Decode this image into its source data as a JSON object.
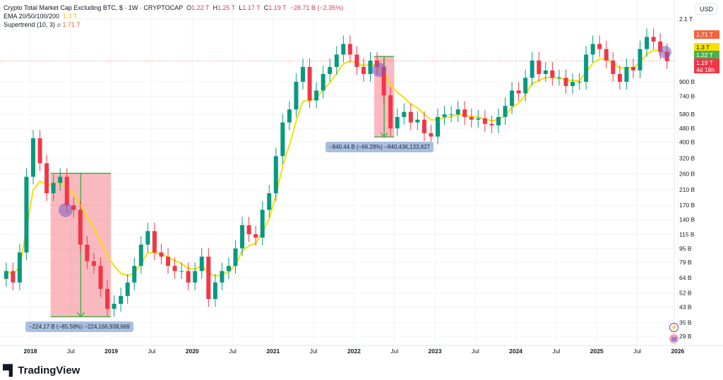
{
  "header": {
    "title": "Crypto Total Market Cap Excluding BTC, $ · 1W · CRYPTOCAP",
    "ohlc": {
      "o_label": "O",
      "o": "1.22 T",
      "h_label": "H",
      "h": "1.25 T",
      "l_label": "L",
      "l": "1.17 T",
      "c_label": "C",
      "c": "1.19 T",
      "change": "−28.71 B (−2.35%)"
    },
    "ema_label": "EMA 20/50/100/200",
    "ema_value": "1.3 T",
    "supertrend_label": "Supertrend (10, 3)",
    "supertrend_icon": "hidden-eye-icon",
    "supertrend_value": "1.71 T"
  },
  "currency": "USD",
  "price_labels": [
    {
      "text": "1.71 T",
      "color": "#f7633c"
    },
    {
      "text": "1.3 T",
      "color": "#f5e000"
    },
    {
      "text": "1.22 T",
      "color": "#4caf50"
    },
    {
      "text": "1.19 T",
      "color": "#f23645",
      "sub": "4d 18h"
    }
  ],
  "brand": "TradingView",
  "colors": {
    "up": "#089981",
    "down": "#f23645",
    "ema": "#f5e000",
    "supertrend_up": "#4caf50",
    "supertrend_down": "#f7633c",
    "measure_down": "#f23645",
    "measure_bg": "#a9bfe0"
  },
  "chart_data": {
    "type": "candlestick",
    "scale": "log",
    "unit": "B USD",
    "ylim": [
      26,
      2300
    ],
    "grid": true,
    "x_ticks": [
      {
        "date": "2018-01",
        "label": "2018",
        "bold": true
      },
      {
        "date": "2018-07",
        "label": "Jul"
      },
      {
        "date": "2019-01",
        "label": "2019",
        "bold": true
      },
      {
        "date": "2019-07",
        "label": "Jul"
      },
      {
        "date": "2020-01",
        "label": "2020",
        "bold": true
      },
      {
        "date": "2020-07",
        "label": "Jul"
      },
      {
        "date": "2021-01",
        "label": "2021",
        "bold": true
      },
      {
        "date": "2021-07",
        "label": "Jul"
      },
      {
        "date": "2022-01",
        "label": "2022",
        "bold": true
      },
      {
        "date": "2022-07",
        "label": "Jul"
      },
      {
        "date": "2023-01",
        "label": "2023",
        "bold": true
      },
      {
        "date": "2023-07",
        "label": "Jul"
      },
      {
        "date": "2024-01",
        "label": "2024",
        "bold": true
      },
      {
        "date": "2024-07",
        "label": "Jul"
      },
      {
        "date": "2025-01",
        "label": "2025",
        "bold": true
      },
      {
        "date": "2025-07",
        "label": "Jul"
      },
      {
        "date": "2026-01",
        "label": "2026",
        "bold": true
      }
    ],
    "y_ticks": [
      {
        "value": 2100,
        "label": "2.1 T"
      },
      {
        "value": 900,
        "label": "900 B"
      },
      {
        "value": 740,
        "label": "740 B"
      },
      {
        "value": 580,
        "label": "580 B"
      },
      {
        "value": 480,
        "label": "480 B"
      },
      {
        "value": 400,
        "label": "400 B"
      },
      {
        "value": 320,
        "label": "320 B"
      },
      {
        "value": 260,
        "label": "260 B"
      },
      {
        "value": 210,
        "label": "210 B"
      },
      {
        "value": 170,
        "label": "170 B"
      },
      {
        "value": 140,
        "label": "140 B"
      },
      {
        "value": 115,
        "label": "115 B"
      },
      {
        "value": 95,
        "label": "95 B"
      },
      {
        "value": 79,
        "label": "79 B"
      },
      {
        "value": 64,
        "label": "64 B"
      },
      {
        "value": 52,
        "label": "52 B"
      },
      {
        "value": 43,
        "label": "43 B"
      },
      {
        "value": 35,
        "label": "35 B"
      },
      {
        "value": 29,
        "label": "29 B"
      }
    ],
    "series": {
      "dates": [
        "2017-09",
        "2017-10",
        "2017-11",
        "2017-12",
        "2018-01",
        "2018-02",
        "2018-03",
        "2018-04",
        "2018-05",
        "2018-06",
        "2018-07",
        "2018-08",
        "2018-09",
        "2018-10",
        "2018-11",
        "2018-12",
        "2019-01",
        "2019-02",
        "2019-03",
        "2019-04",
        "2019-05",
        "2019-06",
        "2019-07",
        "2019-08",
        "2019-09",
        "2019-10",
        "2019-11",
        "2019-12",
        "2020-01",
        "2020-02",
        "2020-03",
        "2020-04",
        "2020-05",
        "2020-06",
        "2020-07",
        "2020-08",
        "2020-09",
        "2020-10",
        "2020-11",
        "2020-12",
        "2021-01",
        "2021-02",
        "2021-03",
        "2021-04",
        "2021-05",
        "2021-06",
        "2021-07",
        "2021-08",
        "2021-09",
        "2021-10",
        "2021-11",
        "2021-12",
        "2022-01",
        "2022-02",
        "2022-03",
        "2022-04",
        "2022-05",
        "2022-06",
        "2022-07",
        "2022-08",
        "2022-09",
        "2022-10",
        "2022-11",
        "2022-12",
        "2023-01",
        "2023-02",
        "2023-03",
        "2023-04",
        "2023-05",
        "2023-06",
        "2023-07",
        "2023-08",
        "2023-09",
        "2023-10",
        "2023-11",
        "2023-12",
        "2024-01",
        "2024-02",
        "2024-03",
        "2024-04",
        "2024-05",
        "2024-06",
        "2024-07",
        "2024-08",
        "2024-09",
        "2024-10",
        "2024-11",
        "2024-12",
        "2025-01",
        "2025-02",
        "2025-03",
        "2025-04",
        "2025-05",
        "2025-06",
        "2025-07",
        "2025-08",
        "2025-09",
        "2025-10",
        "2025-11"
      ],
      "close": [
        70,
        60,
        90,
        250,
        420,
        300,
        200,
        230,
        250,
        170,
        160,
        100,
        80,
        75,
        55,
        42,
        45,
        50,
        60,
        75,
        100,
        120,
        90,
        85,
        75,
        70,
        70,
        60,
        70,
        85,
        48,
        60,
        70,
        75,
        95,
        130,
        115,
        110,
        160,
        200,
        330,
        520,
        620,
        900,
        1100,
        700,
        800,
        1000,
        1100,
        1300,
        1500,
        1300,
        1100,
        1000,
        1200,
        1100,
        750,
        480,
        560,
        600,
        520,
        540,
        450,
        430,
        560,
        580,
        580,
        620,
        560,
        540,
        550,
        510,
        500,
        560,
        650,
        800,
        770,
        950,
        1200,
        1000,
        1050,
        950,
        950,
        850,
        900,
        900,
        1300,
        1500,
        1400,
        1200,
        1000,
        900,
        1100,
        1050,
        1400,
        1650,
        1550,
        1350,
        1190
      ]
    },
    "measurements": [
      {
        "from": "2018-04",
        "to": "2018-12",
        "start": 261.96,
        "end": 37.79,
        "label": "−224.17 B (−85.58%) −224,166,938,669"
      },
      {
        "from": "2022-04",
        "to": "2022-06",
        "start": 1268,
        "end": 427.6,
        "label": "−840.44 B (−66.28%) −840,436,133,827"
      }
    ]
  }
}
